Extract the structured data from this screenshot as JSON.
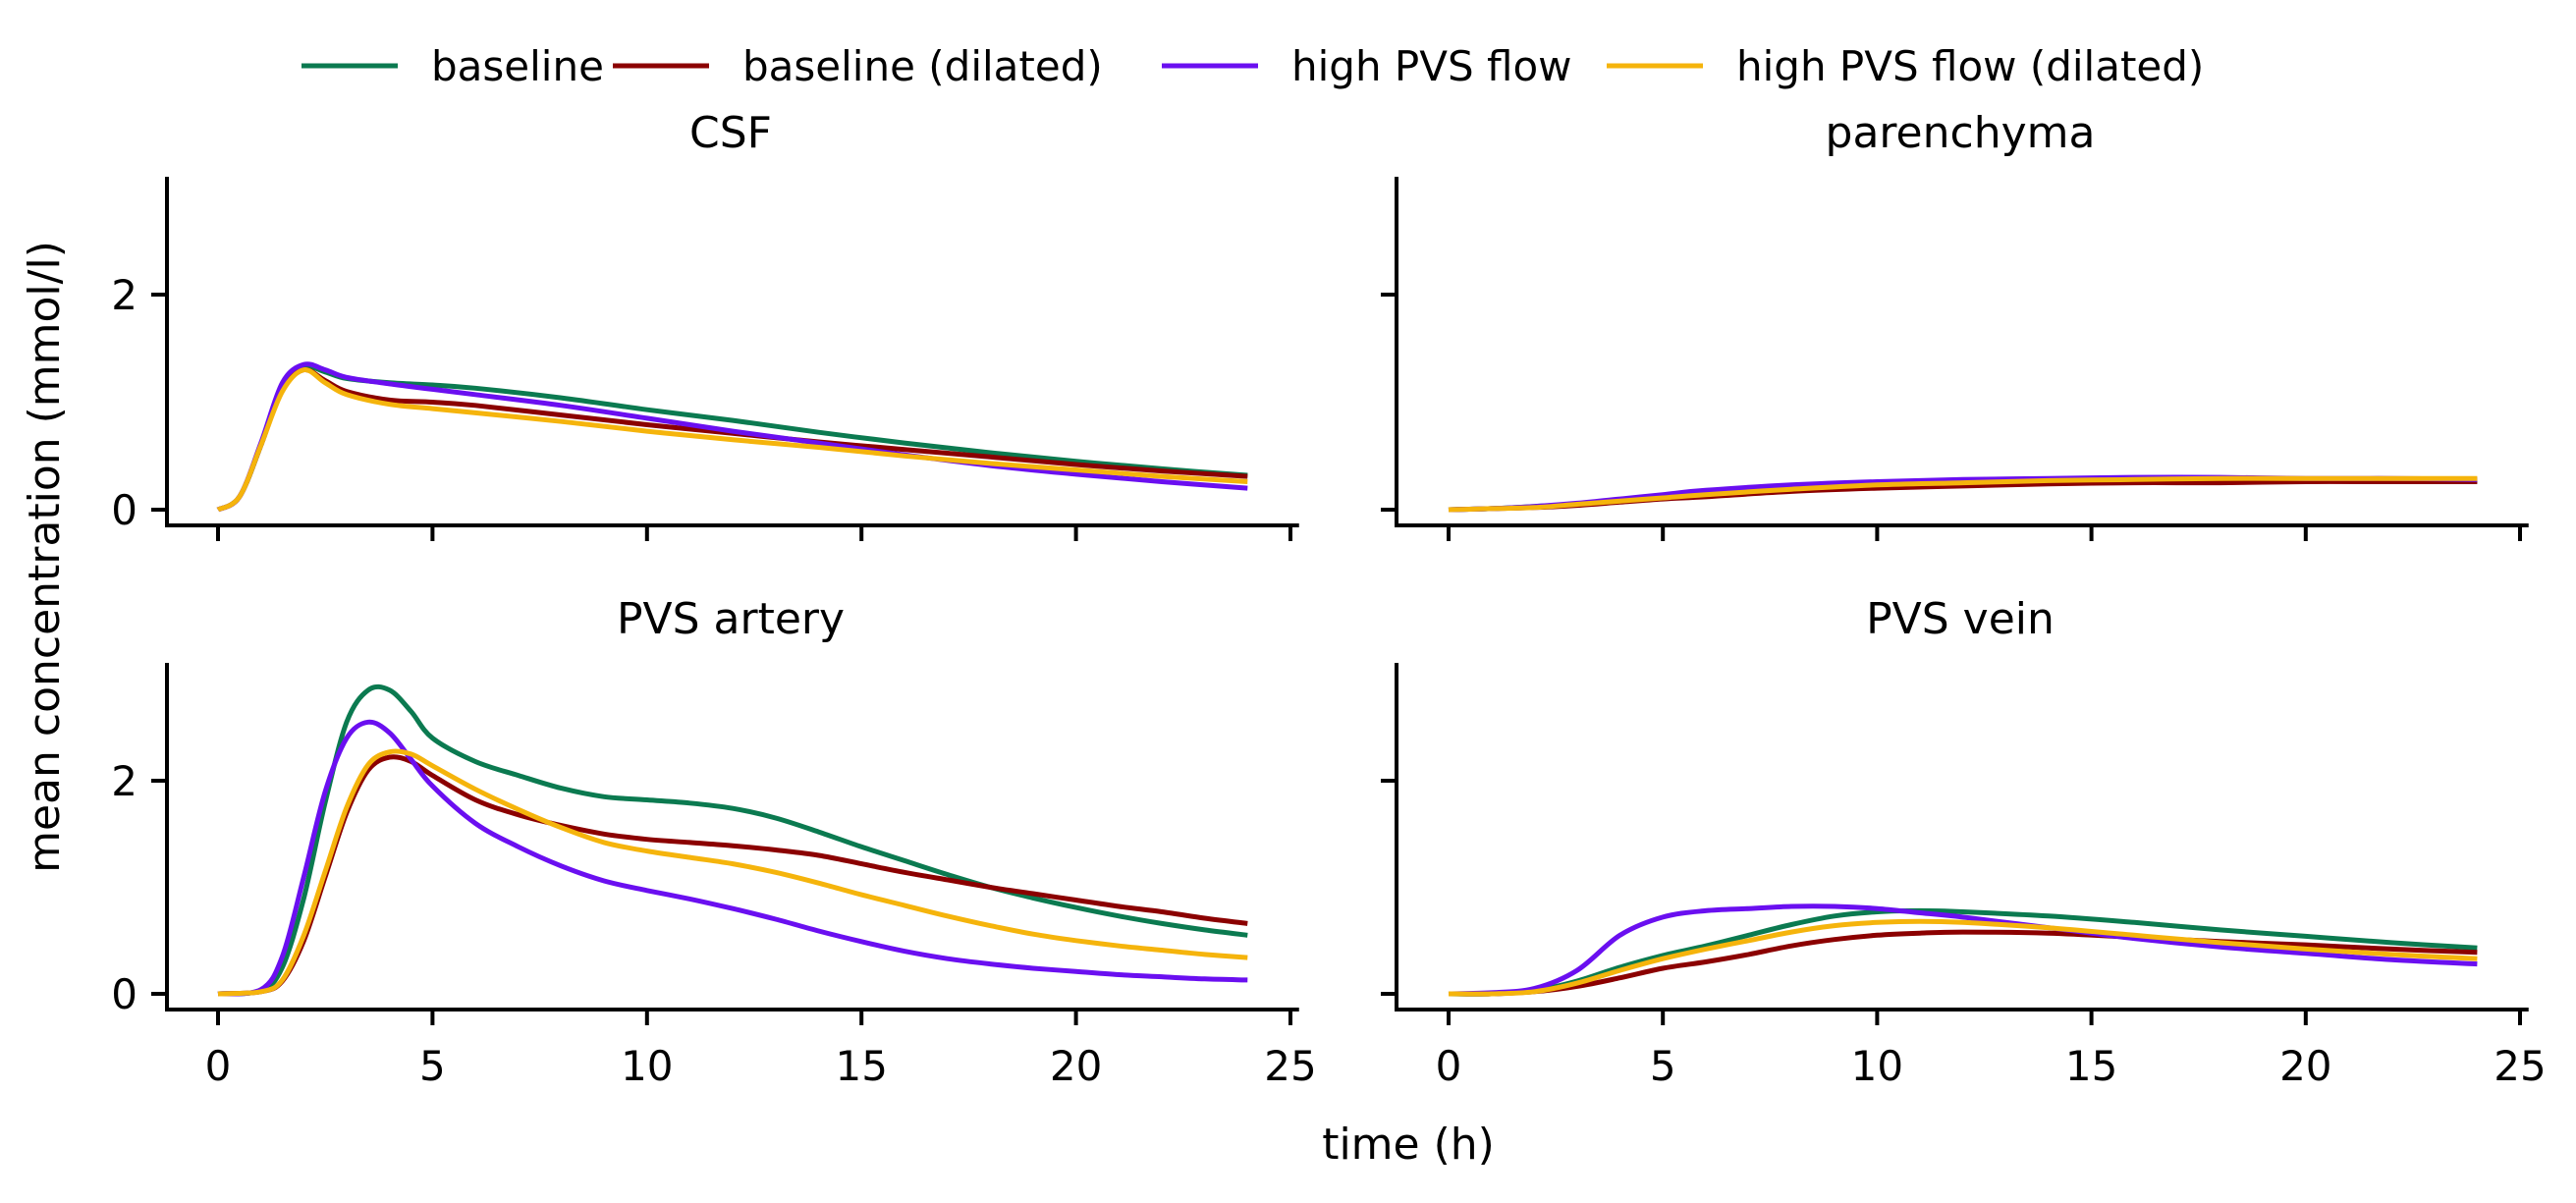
{
  "legend": {
    "position": "top-center",
    "entries": [
      {
        "label": "baseline",
        "color": "#0b7a50"
      },
      {
        "label": "baseline (dilated)",
        "color": "#8b0000"
      },
      {
        "label": "high PVS flow",
        "color": "#6a0ff0"
      },
      {
        "label": "high PVS flow (dilated)",
        "color": "#f5b40c"
      }
    ]
  },
  "xlabel": "time (h)",
  "ylabel": "mean concentration (mmol/l)",
  "chart_data": [
    {
      "type": "line",
      "title": "CSF",
      "xlim": [
        -1.2,
        25.2
      ],
      "ylim": [
        -0.15,
        3.05
      ],
      "xticks": [
        0,
        5,
        10,
        15,
        20,
        25
      ],
      "yticks": [
        0,
        2
      ],
      "show_xticklabels": false,
      "show_yticklabels": true,
      "series": [
        {
          "name": "baseline",
          "color": "#0b7a50",
          "x": [
            0,
            0.5,
            1,
            1.5,
            2,
            2.5,
            3,
            4,
            5,
            6,
            8,
            10,
            12,
            14,
            16,
            18,
            20,
            22,
            24
          ],
          "y": [
            0,
            0.12,
            0.6,
            1.15,
            1.33,
            1.28,
            1.22,
            1.18,
            1.16,
            1.13,
            1.04,
            0.93,
            0.83,
            0.72,
            0.62,
            0.53,
            0.45,
            0.38,
            0.32
          ]
        },
        {
          "name": "baseline (dilated)",
          "color": "#8b0000",
          "x": [
            0,
            0.5,
            1,
            1.5,
            2,
            2.5,
            3,
            4,
            5,
            6,
            8,
            10,
            12,
            14,
            16,
            18,
            20,
            22,
            24
          ],
          "y": [
            0,
            0.12,
            0.6,
            1.12,
            1.3,
            1.2,
            1.1,
            1.02,
            1.0,
            0.97,
            0.88,
            0.79,
            0.71,
            0.63,
            0.56,
            0.49,
            0.42,
            0.36,
            0.31
          ]
        },
        {
          "name": "high PVS flow",
          "color": "#6a0ff0",
          "x": [
            0,
            0.5,
            1,
            1.5,
            2,
            2.5,
            3,
            4,
            5,
            6,
            8,
            10,
            12,
            14,
            16,
            18,
            20,
            22,
            24
          ],
          "y": [
            0,
            0.12,
            0.62,
            1.18,
            1.35,
            1.3,
            1.23,
            1.17,
            1.12,
            1.07,
            0.97,
            0.85,
            0.73,
            0.62,
            0.51,
            0.41,
            0.33,
            0.26,
            0.2
          ]
        },
        {
          "name": "high PVS flow (dilated)",
          "color": "#f5b40c",
          "x": [
            0,
            0.5,
            1,
            1.5,
            2,
            2.5,
            3,
            4,
            5,
            6,
            8,
            10,
            12,
            14,
            16,
            18,
            20,
            22,
            24
          ],
          "y": [
            0,
            0.12,
            0.6,
            1.1,
            1.3,
            1.18,
            1.07,
            0.98,
            0.94,
            0.9,
            0.82,
            0.73,
            0.65,
            0.58,
            0.5,
            0.43,
            0.37,
            0.31,
            0.26
          ]
        }
      ]
    },
    {
      "type": "line",
      "title": "parenchyma",
      "xlim": [
        -1.2,
        25.2
      ],
      "ylim": [
        -0.15,
        3.05
      ],
      "xticks": [
        0,
        5,
        10,
        15,
        20,
        25
      ],
      "yticks": [
        0,
        2
      ],
      "show_xticklabels": false,
      "show_yticklabels": false,
      "series": [
        {
          "name": "baseline",
          "color": "#0b7a50",
          "x": [
            0,
            1,
            2,
            3,
            4,
            5,
            6,
            8,
            10,
            12,
            14,
            16,
            18,
            20,
            22,
            24
          ],
          "y": [
            0,
            0.01,
            0.03,
            0.05,
            0.08,
            0.11,
            0.14,
            0.19,
            0.22,
            0.24,
            0.25,
            0.26,
            0.27,
            0.27,
            0.27,
            0.27
          ]
        },
        {
          "name": "baseline (dilated)",
          "color": "#8b0000",
          "x": [
            0,
            1,
            2,
            3,
            4,
            5,
            6,
            8,
            10,
            12,
            14,
            16,
            18,
            20,
            22,
            24
          ],
          "y": [
            0,
            0.01,
            0.02,
            0.04,
            0.07,
            0.1,
            0.12,
            0.17,
            0.2,
            0.22,
            0.24,
            0.25,
            0.25,
            0.26,
            0.26,
            0.26
          ]
        },
        {
          "name": "high PVS flow",
          "color": "#6a0ff0",
          "x": [
            0,
            1,
            2,
            3,
            4,
            5,
            6,
            8,
            10,
            12,
            14,
            16,
            18,
            20,
            22,
            24
          ],
          "y": [
            0,
            0.01,
            0.03,
            0.06,
            0.1,
            0.14,
            0.18,
            0.23,
            0.26,
            0.28,
            0.29,
            0.3,
            0.3,
            0.29,
            0.29,
            0.28
          ]
        },
        {
          "name": "high PVS flow (dilated)",
          "color": "#f5b40c",
          "x": [
            0,
            1,
            2,
            3,
            4,
            5,
            6,
            8,
            10,
            12,
            14,
            16,
            18,
            20,
            22,
            24
          ],
          "y": [
            0,
            0.01,
            0.02,
            0.05,
            0.08,
            0.11,
            0.14,
            0.19,
            0.23,
            0.25,
            0.27,
            0.28,
            0.29,
            0.29,
            0.29,
            0.29
          ]
        }
      ]
    },
    {
      "type": "line",
      "title": "PVS artery",
      "xlim": [
        -1.2,
        25.2
      ],
      "ylim": [
        -0.15,
        3.05
      ],
      "xticks": [
        0,
        5,
        10,
        15,
        20,
        25
      ],
      "yticks": [
        0,
        2
      ],
      "show_xticklabels": true,
      "show_yticklabels": true,
      "series": [
        {
          "name": "baseline",
          "color": "#0b7a50",
          "x": [
            0,
            1,
            1.5,
            2,
            2.5,
            3,
            3.5,
            4,
            4.5,
            5,
            6,
            7,
            8,
            9,
            10,
            11,
            12,
            13,
            14,
            15,
            16,
            17,
            18,
            19,
            20,
            21,
            22,
            23,
            24
          ],
          "y": [
            0,
            0.03,
            0.25,
            0.9,
            1.8,
            2.55,
            2.85,
            2.85,
            2.65,
            2.4,
            2.18,
            2.05,
            1.93,
            1.85,
            1.82,
            1.79,
            1.74,
            1.65,
            1.52,
            1.38,
            1.25,
            1.12,
            1.0,
            0.9,
            0.81,
            0.73,
            0.66,
            0.6,
            0.55
          ]
        },
        {
          "name": "baseline (dilated)",
          "color": "#8b0000",
          "x": [
            0,
            1,
            1.5,
            2,
            2.5,
            3,
            3.5,
            4,
            4.5,
            5,
            6,
            7,
            8,
            9,
            10,
            11,
            12,
            13,
            14,
            15,
            16,
            17,
            18,
            19,
            20,
            21,
            22,
            23,
            24
          ],
          "y": [
            0,
            0.02,
            0.12,
            0.5,
            1.1,
            1.7,
            2.1,
            2.22,
            2.18,
            2.05,
            1.82,
            1.68,
            1.58,
            1.5,
            1.45,
            1.42,
            1.39,
            1.35,
            1.3,
            1.22,
            1.14,
            1.07,
            1.0,
            0.94,
            0.88,
            0.82,
            0.77,
            0.71,
            0.66
          ]
        },
        {
          "name": "high PVS flow",
          "color": "#6a0ff0",
          "x": [
            0,
            1,
            1.5,
            2,
            2.5,
            3,
            3.5,
            4,
            4.5,
            5,
            6,
            7,
            8,
            9,
            10,
            11,
            12,
            13,
            14,
            15,
            16,
            17,
            18,
            19,
            20,
            21,
            22,
            23,
            24
          ],
          "y": [
            0,
            0.04,
            0.35,
            1.1,
            1.9,
            2.4,
            2.55,
            2.45,
            2.2,
            1.95,
            1.6,
            1.38,
            1.2,
            1.06,
            0.97,
            0.89,
            0.8,
            0.7,
            0.59,
            0.49,
            0.4,
            0.33,
            0.28,
            0.24,
            0.21,
            0.18,
            0.16,
            0.14,
            0.13
          ]
        },
        {
          "name": "high PVS flow (dilated)",
          "color": "#f5b40c",
          "x": [
            0,
            1,
            1.5,
            2,
            2.5,
            3,
            3.5,
            4,
            4.5,
            5,
            6,
            7,
            8,
            9,
            10,
            11,
            12,
            13,
            14,
            15,
            16,
            17,
            18,
            19,
            20,
            21,
            22,
            23,
            24
          ],
          "y": [
            0,
            0.02,
            0.13,
            0.55,
            1.15,
            1.75,
            2.15,
            2.27,
            2.25,
            2.14,
            1.92,
            1.73,
            1.56,
            1.42,
            1.34,
            1.28,
            1.22,
            1.14,
            1.04,
            0.93,
            0.83,
            0.73,
            0.64,
            0.56,
            0.5,
            0.45,
            0.41,
            0.37,
            0.34
          ]
        }
      ]
    },
    {
      "type": "line",
      "title": "PVS vein",
      "xlim": [
        -1.2,
        25.2
      ],
      "ylim": [
        -0.15,
        3.05
      ],
      "xticks": [
        0,
        5,
        10,
        15,
        20,
        25
      ],
      "yticks": [
        0,
        2
      ],
      "show_xticklabels": true,
      "show_yticklabels": false,
      "series": [
        {
          "name": "baseline",
          "color": "#0b7a50",
          "x": [
            0,
            1,
            2,
            3,
            4,
            5,
            6,
            7,
            8,
            9,
            10,
            11,
            12,
            14,
            16,
            18,
            20,
            22,
            24
          ],
          "y": [
            0,
            0.0,
            0.03,
            0.12,
            0.25,
            0.36,
            0.45,
            0.55,
            0.65,
            0.73,
            0.77,
            0.78,
            0.77,
            0.73,
            0.67,
            0.6,
            0.54,
            0.48,
            0.43
          ]
        },
        {
          "name": "baseline (dilated)",
          "color": "#8b0000",
          "x": [
            0,
            1,
            2,
            3,
            4,
            5,
            6,
            7,
            8,
            9,
            10,
            11,
            12,
            14,
            16,
            18,
            20,
            22,
            24
          ],
          "y": [
            0,
            0.0,
            0.02,
            0.07,
            0.15,
            0.24,
            0.3,
            0.37,
            0.45,
            0.51,
            0.55,
            0.57,
            0.58,
            0.57,
            0.53,
            0.49,
            0.46,
            0.42,
            0.39
          ]
        },
        {
          "name": "high PVS flow",
          "color": "#6a0ff0",
          "x": [
            0,
            1,
            2,
            3,
            4,
            5,
            6,
            7,
            8,
            9,
            10,
            11,
            12,
            14,
            16,
            18,
            20,
            22,
            24
          ],
          "y": [
            0,
            0.01,
            0.05,
            0.22,
            0.55,
            0.72,
            0.78,
            0.8,
            0.82,
            0.82,
            0.8,
            0.76,
            0.72,
            0.62,
            0.52,
            0.44,
            0.38,
            0.32,
            0.28
          ]
        },
        {
          "name": "high PVS flow (dilated)",
          "color": "#f5b40c",
          "x": [
            0,
            1,
            2,
            3,
            4,
            5,
            6,
            7,
            8,
            9,
            10,
            11,
            12,
            14,
            16,
            18,
            20,
            22,
            24
          ],
          "y": [
            0,
            0.0,
            0.02,
            0.1,
            0.22,
            0.33,
            0.42,
            0.5,
            0.58,
            0.64,
            0.67,
            0.68,
            0.67,
            0.62,
            0.55,
            0.48,
            0.42,
            0.37,
            0.33
          ]
        }
      ]
    }
  ]
}
